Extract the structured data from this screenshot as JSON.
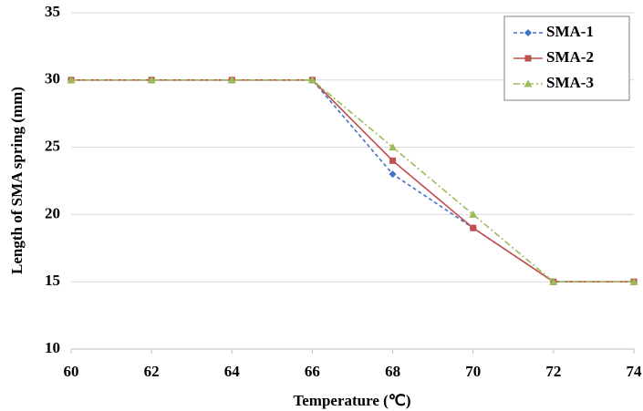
{
  "chart_data": {
    "type": "line",
    "x_label": "Temperature (℃)",
    "y_label": "Length of SMA spring (mm)",
    "x": [
      60,
      62,
      64,
      66,
      68,
      70,
      72,
      74
    ],
    "series": [
      {
        "name": "SMA-1",
        "color": "#4472c4",
        "linestyle": "dashed",
        "marker": "diamond",
        "values": [
          30,
          30,
          30,
          30,
          23,
          19,
          15,
          15
        ]
      },
      {
        "name": "SMA-2",
        "color": "#c0504d",
        "linestyle": "solid",
        "marker": "square",
        "values": [
          30,
          30,
          30,
          30,
          24,
          19,
          15,
          15
        ]
      },
      {
        "name": "SMA-3",
        "color": "#9bbb59",
        "linestyle": "dashdot",
        "marker": "triangle",
        "values": [
          30,
          30,
          30,
          30,
          25,
          20,
          15,
          15
        ]
      }
    ],
    "xlim": [
      60,
      74
    ],
    "xticks": [
      60,
      62,
      64,
      66,
      68,
      70,
      72,
      74
    ],
    "ylim": [
      10,
      35
    ],
    "yticks": [
      10,
      15,
      20,
      25,
      30,
      35
    ],
    "grid": true,
    "legend": "upper right"
  }
}
